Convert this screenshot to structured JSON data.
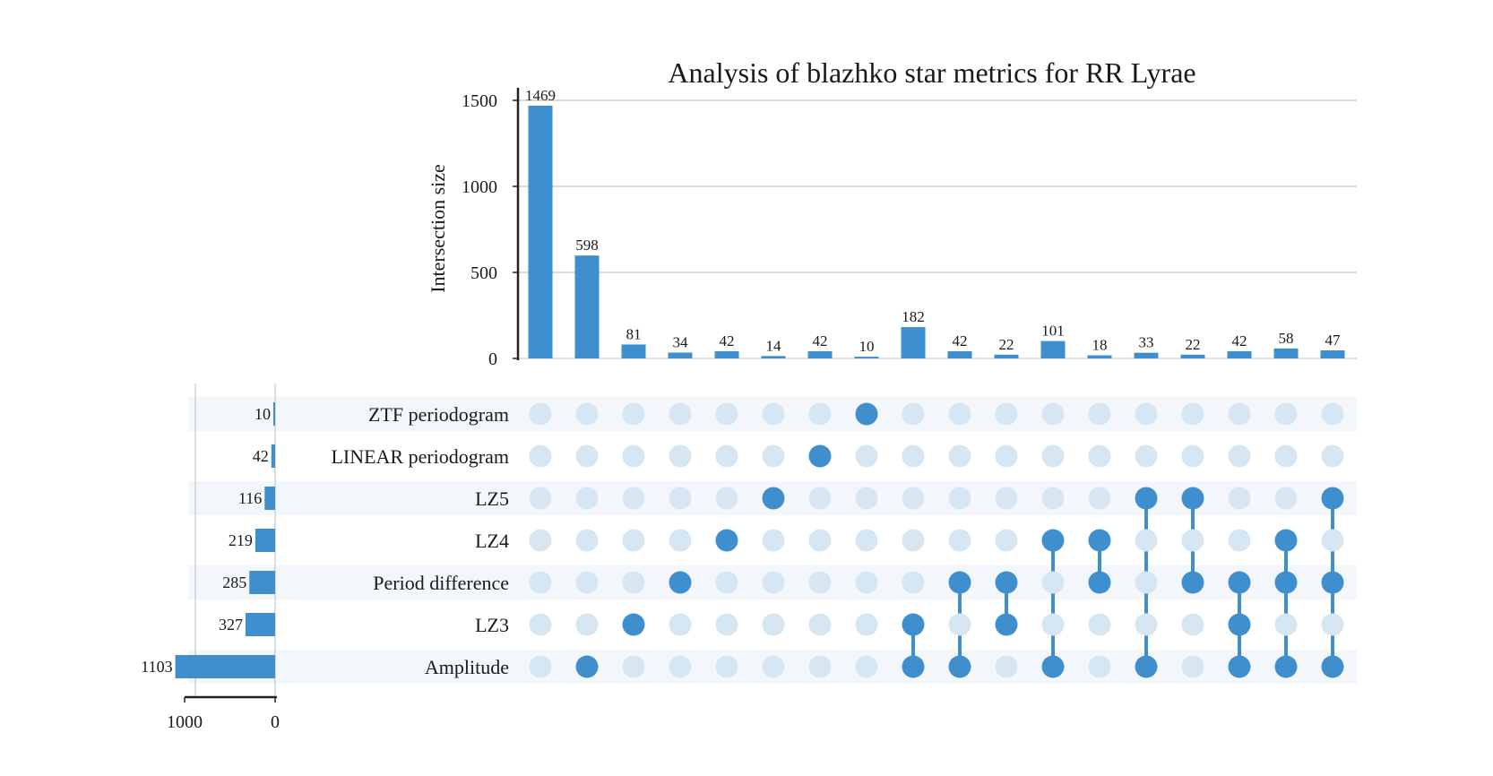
{
  "chart_data": {
    "type": "upset",
    "title": "Analysis of blazhko star metrics for RR Lyrae",
    "ylabel": "Intersection size",
    "ylim": [
      0,
      1500
    ],
    "yticks": [
      0,
      500,
      1000,
      1500
    ],
    "grid": true,
    "colors": {
      "bar": "#3f8fcf",
      "dot_active": "#3f8fcf",
      "dot_inactive": "#d7e6f3",
      "stripe": "#f3f7fb",
      "grid": "#c8c8c8",
      "axis": "#222222"
    },
    "sets": [
      "ZTF periodogram",
      "LINEAR periodogram",
      "LZ5",
      "LZ4",
      "Period difference",
      "LZ3",
      "Amplitude"
    ],
    "set_sizes": [
      10,
      42,
      116,
      219,
      285,
      327,
      1103
    ],
    "set_size_ticks": [
      1000,
      0
    ],
    "intersections": [
      {
        "value": 1469,
        "members": []
      },
      {
        "value": 598,
        "members": [
          "Amplitude"
        ]
      },
      {
        "value": 81,
        "members": [
          "LZ3"
        ]
      },
      {
        "value": 34,
        "members": [
          "Period difference"
        ]
      },
      {
        "value": 42,
        "members": [
          "LZ4"
        ]
      },
      {
        "value": 14,
        "members": [
          "LZ5"
        ]
      },
      {
        "value": 42,
        "members": [
          "LINEAR periodogram"
        ]
      },
      {
        "value": 10,
        "members": [
          "ZTF periodogram"
        ]
      },
      {
        "value": 182,
        "members": [
          "LZ3",
          "Amplitude"
        ]
      },
      {
        "value": 42,
        "members": [
          "Period difference",
          "Amplitude"
        ]
      },
      {
        "value": 22,
        "members": [
          "Period difference",
          "LZ3"
        ]
      },
      {
        "value": 101,
        "members": [
          "LZ4",
          "Amplitude"
        ]
      },
      {
        "value": 18,
        "members": [
          "LZ4",
          "Period difference"
        ]
      },
      {
        "value": 33,
        "members": [
          "LZ5",
          "Amplitude"
        ]
      },
      {
        "value": 22,
        "members": [
          "LZ5",
          "Period difference"
        ]
      },
      {
        "value": 42,
        "members": [
          "Period difference",
          "LZ3",
          "Amplitude"
        ]
      },
      {
        "value": 58,
        "members": [
          "LZ4",
          "Period difference",
          "Amplitude"
        ]
      },
      {
        "value": 47,
        "members": [
          "LZ5",
          "Period difference",
          "Amplitude"
        ]
      }
    ]
  }
}
